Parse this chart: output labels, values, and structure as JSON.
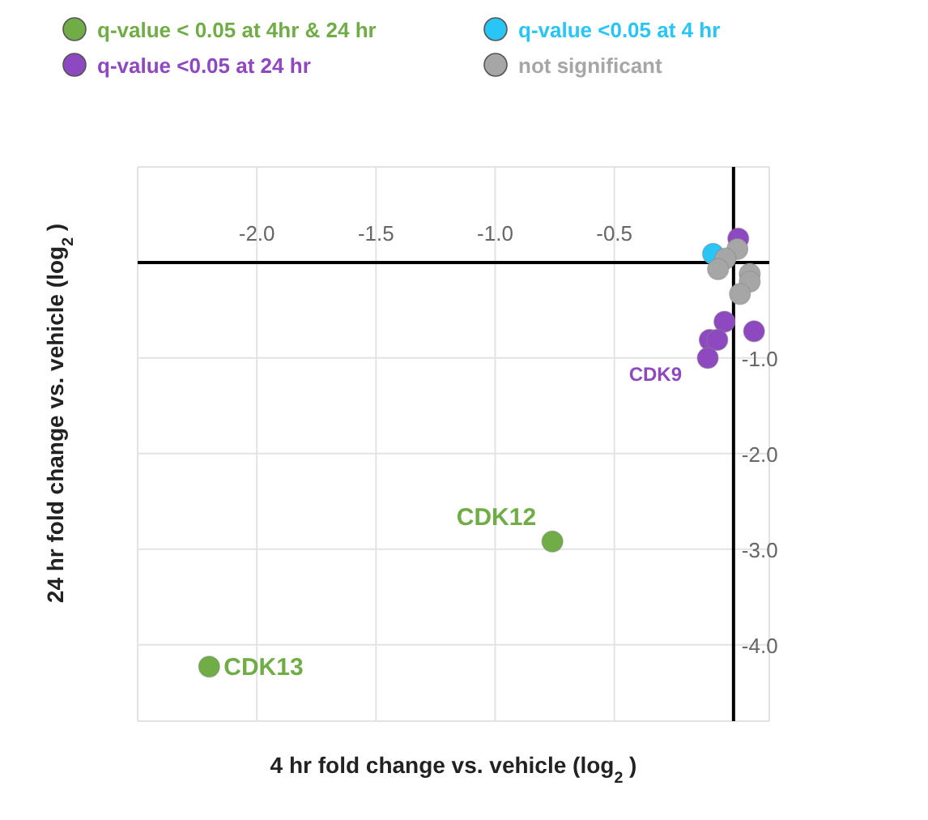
{
  "chart_data": {
    "type": "scatter",
    "xlabel": "4 hr fold change vs. vehicle (log$_{2}$)",
    "ylabel": "24 hr fold change vs. vehicle (log$_{2}$)",
    "xlim": [
      -2.5,
      0.15
    ],
    "ylim": [
      -4.8,
      1.0
    ],
    "xticks": [
      {
        "value": -2,
        "label": "-2.0"
      },
      {
        "value": -1.5,
        "label": "-1.5"
      },
      {
        "value": -1,
        "label": "-1.0"
      },
      {
        "value": -0.5,
        "label": "-0.5"
      }
    ],
    "yticks": [
      {
        "value": -4,
        "label": "-4.0"
      },
      {
        "value": -3,
        "label": "-3.0"
      },
      {
        "value": -2,
        "label": "-2.0"
      },
      {
        "value": -1,
        "label": "-1.0"
      }
    ],
    "grid": true,
    "legend": "top",
    "marker": "circle",
    "series": [
      {
        "name": "q-value < 0.05 at 4hr & 24 hr",
        "color": "#70ad47",
        "x": [
          -0.76,
          -2.2
        ],
        "values": [
          -2.92,
          -4.23
        ]
      },
      {
        "name": "q-value <0.05 at 4 hr",
        "color": "#29c5f6",
        "x": [
          -0.086
        ],
        "values": [
          0.09
        ]
      },
      {
        "name": "q-value <0.05 at 24 hr",
        "color": "#8e48c0",
        "x": [
          0.02,
          -0.038,
          0.086,
          -0.1,
          -0.068,
          -0.108
        ],
        "values": [
          0.25,
          -0.62,
          -0.72,
          -0.81,
          -0.81,
          -1.0
        ]
      },
      {
        "name": "not significant",
        "color": "#a6a6a6",
        "x": [
          0.016,
          -0.034,
          -0.065,
          0.068,
          0.068,
          0.027
        ],
        "values": [
          0.14,
          0.04,
          -0.07,
          -0.12,
          -0.2,
          -0.33
        ]
      }
    ],
    "annotations": [
      {
        "text": "CDK12",
        "x": -0.76,
        "y": -2.92
      },
      {
        "text": "CDK13",
        "x": -2.2,
        "y": -4.23
      },
      {
        "text": "CDK9",
        "x": -0.108,
        "y": -1.0
      }
    ]
  }
}
